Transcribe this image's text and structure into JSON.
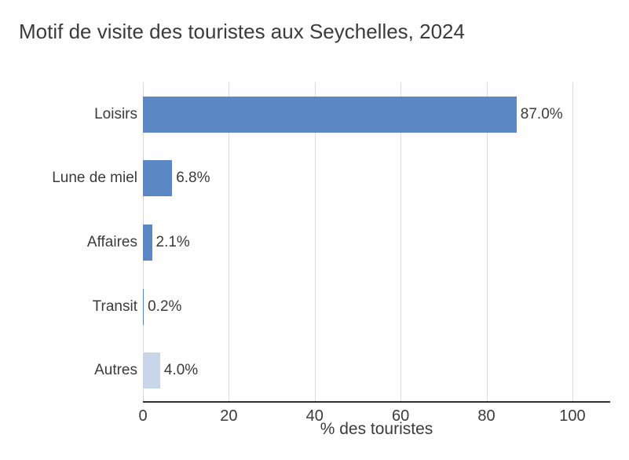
{
  "chart_data": {
    "type": "bar",
    "orientation": "horizontal",
    "title": "Motif de visite des touristes aux Seychelles, 2024",
    "xlabel": "% des touristes",
    "ylabel": "",
    "categories": [
      "Loisirs",
      "Lune de miel",
      "Affaires",
      "Transit",
      "Autres"
    ],
    "values": [
      87.0,
      6.8,
      2.1,
      0.2,
      4.0
    ],
    "value_labels": [
      "87.0%",
      "6.8%",
      "2.1%",
      "0.2%",
      "4.0%"
    ],
    "bar_colors": [
      "#5b88c5",
      "#5b88c5",
      "#5b88c5",
      "#5b88c5",
      "#c9d6ea"
    ],
    "x_ticks": [
      "0",
      "20",
      "40",
      "60",
      "80",
      "100"
    ],
    "x_tick_values": [
      0,
      20,
      40,
      60,
      80,
      100
    ],
    "xlim": [
      0,
      108.8
    ],
    "grid": "vertical",
    "legend": "none",
    "colors": {
      "bar_primary": "#5b88c5",
      "bar_muted": "#c9d6ea",
      "gridline": "#d9d9d9",
      "axis_line": "#2e2e2e",
      "text": "#3b3b3b",
      "background": "#ffffff"
    }
  }
}
